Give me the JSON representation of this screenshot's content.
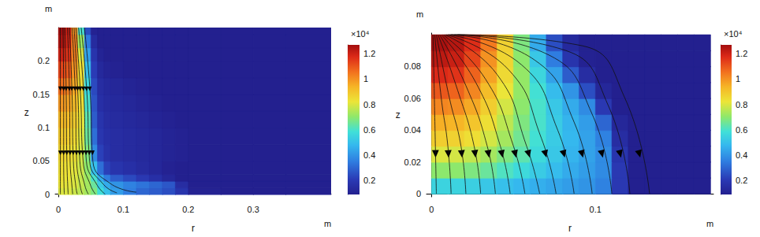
{
  "chart_data": [
    {
      "type": "heatmap",
      "xlabel": "r",
      "ylabel": "z",
      "x_unit": "m",
      "y_unit": "m",
      "xlim": [
        -0.005,
        0.42
      ],
      "ylim": [
        -0.004,
        0.25
      ],
      "xticks": [
        0,
        0.1,
        0.2,
        0.3
      ],
      "yticks": [
        0,
        0.05,
        0.1,
        0.15,
        0.2
      ],
      "grid": false,
      "r_edges": [
        0,
        0.01,
        0.02,
        0.03,
        0.04,
        0.05,
        0.06,
        0.07,
        0.08,
        0.1,
        0.12,
        0.14,
        0.16,
        0.18,
        0.2,
        0.25,
        0.3,
        0.35,
        0.42
      ],
      "z_edges": [
        0,
        0.01,
        0.02,
        0.03,
        0.05,
        0.075,
        0.1,
        0.125,
        0.15,
        0.175,
        0.2,
        0.22,
        0.24,
        0.25
      ],
      "cells": [
        [
          8000,
          8000,
          7800,
          7600,
          7300,
          6800,
          5800,
          5000,
          4200,
          3500,
          3000,
          2800,
          2500,
          1800,
          1000,
          700,
          500,
          400
        ],
        [
          8200,
          8100,
          8000,
          7700,
          7300,
          6500,
          5300,
          4500,
          4000,
          3600,
          3300,
          3000,
          2700,
          1500,
          900,
          700,
          500,
          400
        ],
        [
          8300,
          8200,
          8000,
          7700,
          7200,
          6000,
          4500,
          3500,
          2800,
          2400,
          2000,
          1600,
          1200,
          900,
          800,
          600,
          500,
          400
        ],
        [
          8400,
          8300,
          8100,
          7800,
          7000,
          5000,
          3200,
          2200,
          1800,
          1600,
          1400,
          1200,
          1000,
          900,
          800,
          600,
          500,
          400
        ],
        [
          8600,
          8500,
          8300,
          7900,
          6800,
          3800,
          2200,
          1700,
          1500,
          1400,
          1300,
          1200,
          1100,
          1000,
          900,
          700,
          500,
          400
        ],
        [
          8900,
          8800,
          8500,
          8000,
          6500,
          3200,
          1900,
          1600,
          1500,
          1400,
          1300,
          1200,
          1100,
          1000,
          900,
          700,
          500,
          400
        ],
        [
          9300,
          9200,
          8800,
          8200,
          6300,
          2800,
          1800,
          1500,
          1400,
          1300,
          1200,
          1100,
          1000,
          900,
          800,
          600,
          500,
          400
        ],
        [
          9900,
          9700,
          9200,
          8400,
          6000,
          2600,
          1600,
          1400,
          1300,
          1200,
          1100,
          1000,
          900,
          800,
          700,
          600,
          500,
          400
        ],
        [
          10600,
          10300,
          9600,
          8500,
          5600,
          2400,
          1500,
          1300,
          1200,
          1100,
          1000,
          900,
          800,
          700,
          600,
          500,
          400,
          400
        ],
        [
          11300,
          11000,
          10000,
          8400,
          5000,
          2100,
          1300,
          1100,
          1000,
          900,
          800,
          700,
          700,
          600,
          500,
          500,
          400,
          400
        ],
        [
          12000,
          11600,
          10300,
          8000,
          4300,
          1800,
          1100,
          900,
          800,
          700,
          600,
          600,
          500,
          500,
          400,
          400,
          400,
          400
        ],
        [
          12500,
          12000,
          10300,
          7200,
          3500,
          1400,
          900,
          700,
          600,
          500,
          500,
          500,
          400,
          400,
          400,
          400,
          400,
          400
        ],
        [
          12700,
          12200,
          10000,
          6000,
          2500,
          1000,
          700,
          500,
          400,
          400,
          400,
          400,
          400,
          400,
          400,
          400,
          400,
          400
        ]
      ],
      "colorbar_range": [
        900,
        12700
      ],
      "colorbar_ticks": [
        {
          "value": 2000,
          "label": "0.2"
        },
        {
          "value": 4000,
          "label": "0.4"
        },
        {
          "value": 6000,
          "label": "0.6"
        },
        {
          "value": 8000,
          "label": "0.8"
        },
        {
          "value": 10000,
          "label": "1"
        },
        {
          "value": 12000,
          "label": "1.2"
        }
      ],
      "colorbar_title": "×10⁴",
      "streamlines": [
        [
          [
            0.003,
            0.25
          ],
          [
            0.003,
            0.15
          ],
          [
            0.003,
            0.05
          ],
          [
            0.003,
            0
          ]
        ],
        [
          [
            0.007,
            0.25
          ],
          [
            0.008,
            0.15
          ],
          [
            0.008,
            0.05
          ],
          [
            0.009,
            0
          ]
        ],
        [
          [
            0.01,
            0.25
          ],
          [
            0.012,
            0.15
          ],
          [
            0.013,
            0.05
          ],
          [
            0.015,
            0
          ]
        ],
        [
          [
            0.014,
            0.25
          ],
          [
            0.017,
            0.15
          ],
          [
            0.018,
            0.05
          ],
          [
            0.021,
            0.01
          ],
          [
            0.022,
            0
          ]
        ],
        [
          [
            0.017,
            0.25
          ],
          [
            0.021,
            0.15
          ],
          [
            0.023,
            0.05
          ],
          [
            0.027,
            0.01
          ],
          [
            0.029,
            0
          ]
        ],
        [
          [
            0.021,
            0.25
          ],
          [
            0.026,
            0.15
          ],
          [
            0.028,
            0.05
          ],
          [
            0.034,
            0.01
          ],
          [
            0.037,
            0
          ]
        ],
        [
          [
            0.024,
            0.25
          ],
          [
            0.03,
            0.15
          ],
          [
            0.033,
            0.05
          ],
          [
            0.041,
            0.012
          ],
          [
            0.046,
            0
          ]
        ],
        [
          [
            0.027,
            0.25
          ],
          [
            0.034,
            0.15
          ],
          [
            0.038,
            0.05
          ],
          [
            0.05,
            0.012
          ],
          [
            0.057,
            0
          ]
        ],
        [
          [
            0.031,
            0.25
          ],
          [
            0.039,
            0.15
          ],
          [
            0.043,
            0.05
          ],
          [
            0.06,
            0.013
          ],
          [
            0.072,
            0
          ]
        ],
        [
          [
            0.035,
            0.25
          ],
          [
            0.044,
            0.15
          ],
          [
            0.048,
            0.05
          ],
          [
            0.07,
            0.014
          ],
          [
            0.09,
            0.002
          ]
        ],
        [
          [
            0.04,
            0.25
          ],
          [
            0.049,
            0.15
          ],
          [
            0.053,
            0.05
          ],
          [
            0.08,
            0.016
          ],
          [
            0.12,
            0.003
          ]
        ]
      ],
      "arrow_z": [
        0.158,
        0.062
      ]
    },
    {
      "type": "heatmap",
      "xlabel": "r",
      "ylabel": "z",
      "x_unit": "m",
      "y_unit": "m",
      "xlim": [
        -0.003,
        0.172
      ],
      "ylim": [
        -0.002,
        0.101
      ],
      "xticks": [
        0,
        0.1
      ],
      "yticks": [
        0,
        0.02,
        0.04,
        0.06,
        0.08
      ],
      "grid": false,
      "r_edges": [
        0,
        0.01,
        0.02,
        0.03,
        0.04,
        0.05,
        0.06,
        0.07,
        0.08,
        0.09,
        0.1,
        0.11,
        0.12,
        0.13,
        0.14,
        0.15,
        0.16,
        0.17
      ],
      "z_edges": [
        0,
        0.01,
        0.02,
        0.03,
        0.04,
        0.05,
        0.06,
        0.07,
        0.08,
        0.09,
        0.1
      ],
      "cells": [
        [
          5500,
          5500,
          5400,
          5200,
          5000,
          4800,
          4600,
          4400,
          4200,
          4000,
          3600,
          2000,
          900,
          600,
          500,
          400,
          400
        ],
        [
          7000,
          7000,
          6800,
          6500,
          6100,
          5700,
          5300,
          4900,
          4500,
          4200,
          3800,
          2000,
          900,
          600,
          500,
          400,
          400
        ],
        [
          8000,
          7900,
          7700,
          7300,
          6800,
          6300,
          5700,
          5200,
          4700,
          4300,
          3800,
          1800,
          800,
          600,
          500,
          400,
          400
        ],
        [
          8800,
          8700,
          8400,
          7900,
          7300,
          6600,
          5900,
          5300,
          4800,
          4300,
          3600,
          1500,
          700,
          500,
          400,
          400,
          400
        ],
        [
          9500,
          9400,
          9000,
          8400,
          7600,
          6800,
          6000,
          5300,
          4700,
          4200,
          3000,
          1200,
          700,
          500,
          400,
          400,
          400
        ],
        [
          10200,
          10100,
          9600,
          8800,
          7900,
          7000,
          6000,
          5200,
          4500,
          3800,
          2000,
          900,
          600,
          500,
          400,
          400,
          400
        ],
        [
          11000,
          10800,
          10200,
          9200,
          8200,
          7100,
          5900,
          4900,
          4000,
          2500,
          1200,
          800,
          600,
          500,
          400,
          400,
          400
        ],
        [
          11800,
          11600,
          10800,
          9700,
          8500,
          7100,
          5600,
          4300,
          2800,
          1500,
          900,
          700,
          600,
          500,
          400,
          400,
          400
        ],
        [
          12300,
          12100,
          11300,
          10000,
          8600,
          7000,
          5200,
          3500,
          1800,
          1000,
          800,
          600,
          500,
          400,
          400,
          400,
          400
        ],
        [
          12600,
          12400,
          11700,
          10400,
          8700,
          6800,
          4500,
          2500,
          1300,
          900,
          700,
          600,
          500,
          400,
          400,
          400,
          400
        ]
      ],
      "colorbar_range": [
        900,
        12700
      ],
      "colorbar_ticks": [
        {
          "value": 2000,
          "label": "0.2"
        },
        {
          "value": 4000,
          "label": "0.4"
        },
        {
          "value": 6000,
          "label": "0.6"
        },
        {
          "value": 8000,
          "label": "0.8"
        },
        {
          "value": 10000,
          "label": "1"
        },
        {
          "value": 12000,
          "label": "1.2"
        }
      ],
      "colorbar_title": "×10⁴",
      "streamlines": [
        [
          [
            0.001,
            0.1
          ],
          [
            0.002,
            0.05
          ],
          [
            0.003,
            0
          ]
        ],
        [
          [
            0.002,
            0.1
          ],
          [
            0.006,
            0.06
          ],
          [
            0.01,
            0.03
          ],
          [
            0.012,
            0
          ]
        ],
        [
          [
            0.003,
            0.1
          ],
          [
            0.011,
            0.06
          ],
          [
            0.018,
            0.03
          ],
          [
            0.021,
            0
          ]
        ],
        [
          [
            0.004,
            0.1
          ],
          [
            0.016,
            0.065
          ],
          [
            0.026,
            0.03
          ],
          [
            0.03,
            0
          ]
        ],
        [
          [
            0.005,
            0.1
          ],
          [
            0.021,
            0.068
          ],
          [
            0.034,
            0.03
          ],
          [
            0.039,
            0
          ]
        ],
        [
          [
            0.006,
            0.1
          ],
          [
            0.027,
            0.07
          ],
          [
            0.042,
            0.03
          ],
          [
            0.048,
            0
          ]
        ],
        [
          [
            0.007,
            0.1
          ],
          [
            0.033,
            0.072
          ],
          [
            0.05,
            0.03
          ],
          [
            0.057,
            0
          ]
        ],
        [
          [
            0.008,
            0.1
          ],
          [
            0.04,
            0.075
          ],
          [
            0.058,
            0.03
          ],
          [
            0.066,
            0
          ]
        ],
        [
          [
            0.009,
            0.1
          ],
          [
            0.047,
            0.078
          ],
          [
            0.067,
            0.035
          ],
          [
            0.076,
            0
          ]
        ],
        [
          [
            0.01,
            0.1
          ],
          [
            0.055,
            0.081
          ],
          [
            0.077,
            0.04
          ],
          [
            0.087,
            0
          ]
        ],
        [
          [
            0.011,
            0.1
          ],
          [
            0.063,
            0.084
          ],
          [
            0.087,
            0.045
          ],
          [
            0.098,
            0
          ]
        ],
        [
          [
            0.012,
            0.1
          ],
          [
            0.072,
            0.087
          ],
          [
            0.098,
            0.05
          ],
          [
            0.11,
            0
          ]
        ],
        [
          [
            0.014,
            0.1
          ],
          [
            0.082,
            0.09
          ],
          [
            0.108,
            0.055
          ],
          [
            0.121,
            0
          ]
        ],
        [
          [
            0.016,
            0.1
          ],
          [
            0.092,
            0.093
          ],
          [
            0.118,
            0.06
          ],
          [
            0.133,
            0
          ]
        ]
      ],
      "arrow_z": [
        0.025
      ]
    }
  ]
}
